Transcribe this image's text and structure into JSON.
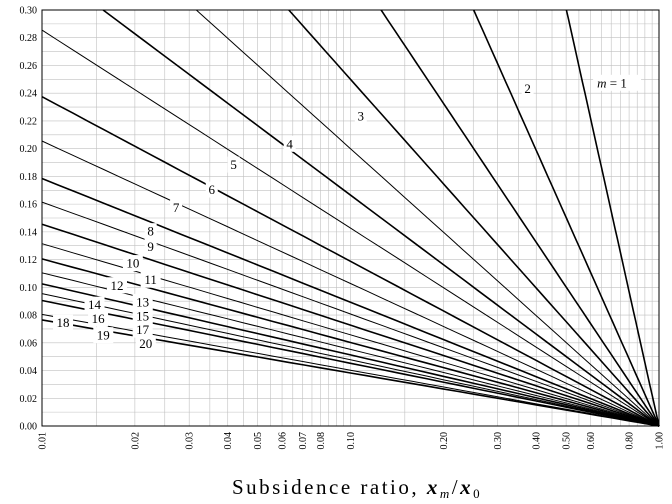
{
  "chart_data": {
    "type": "line",
    "title": "",
    "xlabel_text": "Subsidence ratio, ",
    "xlabel_var": "x",
    "xlabel_sub1": "m",
    "xlabel_slash": "/",
    "xlabel_var2": "x",
    "xlabel_sub2": "0",
    "ylabel": "",
    "xscale": "log",
    "xlim": [
      0.01,
      1.0
    ],
    "ylim": [
      0,
      0.3
    ],
    "grid": true,
    "x_ticks": [
      0.01,
      0.02,
      0.03,
      0.04,
      0.05,
      0.06,
      0.07,
      0.08,
      0.1,
      0.2,
      0.3,
      0.4,
      0.5,
      0.6,
      0.8,
      1.0
    ],
    "x_tick_labels": [
      "0.01",
      "0.02",
      "0.03",
      "0.04",
      "0.05",
      "0.06",
      "0.07",
      "0.08",
      "0.10",
      "0.20",
      "0.30",
      "0.40",
      "0.50",
      "0.60",
      "0.80",
      "1.00"
    ],
    "y_ticks": [
      0,
      0.02,
      0.04,
      0.06,
      0.08,
      0.1,
      0.12,
      0.14,
      0.16,
      0.18,
      0.2,
      0.22,
      0.24,
      0.26,
      0.28,
      0.3
    ],
    "y_tick_labels": [
      "0.00",
      "0.02",
      "0.04",
      "0.06",
      "0.08",
      "0.10",
      "0.12",
      "0.14",
      "0.16",
      "0.18",
      "0.20",
      "0.22",
      "0.24",
      "0.26",
      "0.28",
      "0.30"
    ],
    "curve_label_prefix": "m",
    "curve_label_eq": " = ",
    "series": [
      {
        "name": "1",
        "y_at_xmin": 2.0,
        "label_x": 0.63,
        "label_y": 0.2475
      },
      {
        "name": "2",
        "y_at_xmin": 0.999,
        "label_x": 0.375,
        "label_y": 0.2435
      },
      {
        "name": "3",
        "y_at_xmin": 0.666,
        "label_x": 0.108,
        "label_y": 0.2235
      },
      {
        "name": "4",
        "y_at_xmin": 0.5,
        "label_x": 0.0635,
        "label_y": 0.2035
      },
      {
        "name": "5",
        "y_at_xmin": 0.4,
        "label_x": 0.0418,
        "label_y": 0.1885
      },
      {
        "name": "6",
        "y_at_xmin": 0.333,
        "label_x": 0.0355,
        "label_y": 0.1705
      },
      {
        "name": "7",
        "y_at_xmin": 0.2855,
        "label_x": 0.0272,
        "label_y": 0.1575
      },
      {
        "name": "8",
        "y_at_xmin": 0.2375,
        "label_x": 0.0225,
        "label_y": 0.1405
      },
      {
        "name": "9",
        "y_at_xmin": 0.2055,
        "label_x": 0.0225,
        "label_y": 0.1295
      },
      {
        "name": "10",
        "y_at_xmin": 0.1785,
        "label_x": 0.0197,
        "label_y": 0.1175
      },
      {
        "name": "11",
        "y_at_xmin": 0.1615,
        "label_x": 0.0225,
        "label_y": 0.1055
      },
      {
        "name": "12",
        "y_at_xmin": 0.1455,
        "label_x": 0.0175,
        "label_y": 0.1015
      },
      {
        "name": "13",
        "y_at_xmin": 0.1315,
        "label_x": 0.0212,
        "label_y": 0.0895
      },
      {
        "name": "14",
        "y_at_xmin": 0.1205,
        "label_x": 0.0148,
        "label_y": 0.0875
      },
      {
        "name": "15",
        "y_at_xmin": 0.1105,
        "label_x": 0.0212,
        "label_y": 0.0795
      },
      {
        "name": "16",
        "y_at_xmin": 0.1025,
        "label_x": 0.0152,
        "label_y": 0.0775
      },
      {
        "name": "17",
        "y_at_xmin": 0.0955,
        "label_x": 0.0212,
        "label_y": 0.0695
      },
      {
        "name": "18",
        "y_at_xmin": 0.0905,
        "label_x": 0.0117,
        "label_y": 0.0745
      },
      {
        "name": "19",
        "y_at_xmin": 0.0805,
        "label_x": 0.0158,
        "label_y": 0.0655
      },
      {
        "name": "20",
        "y_at_xmin": 0.0765,
        "label_x": 0.0217,
        "label_y": 0.0595
      }
    ]
  },
  "colors": {
    "grid": "#c0c0c0",
    "line": "#000000",
    "background": "#ffffff"
  }
}
